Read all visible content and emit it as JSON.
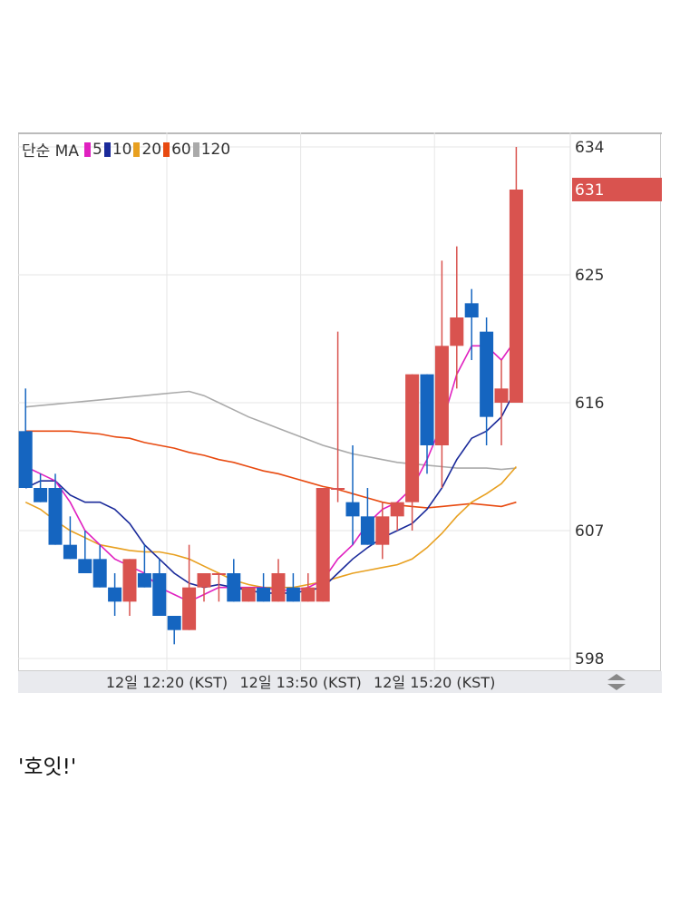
{
  "legend": {
    "prefix": "단순 MA",
    "items": [
      {
        "label": "5",
        "color": "#e020c0"
      },
      {
        "label": "10",
        "color": "#1a2a9a"
      },
      {
        "label": "20",
        "color": "#e8a020"
      },
      {
        "label": "60",
        "color": "#e84a10"
      },
      {
        "label": "120",
        "color": "#aaaaaa"
      }
    ]
  },
  "caption": "'호잇!'",
  "colors": {
    "up": "#d9534f",
    "down": "#1565c0",
    "last_price_bg": "#d9534f"
  },
  "chart_data": {
    "type": "candlestick",
    "ylim": [
      598,
      634
    ],
    "y_ticks": [
      634,
      625,
      616,
      607,
      598
    ],
    "last_price": 631,
    "x_tick_labels": [
      "12일 12:20 (KST)",
      "12일 13:50 (KST)",
      "12일 15:20 (KST)"
    ],
    "x_tick_index": [
      9.5,
      18.5,
      27.5
    ],
    "candles": [
      {
        "o": 614,
        "h": 617,
        "l": 610,
        "c": 610
      },
      {
        "o": 610,
        "h": 611,
        "l": 609,
        "c": 609
      },
      {
        "o": 610,
        "h": 611,
        "l": 606,
        "c": 606
      },
      {
        "o": 606,
        "h": 608,
        "l": 605,
        "c": 605
      },
      {
        "o": 605,
        "h": 607,
        "l": 604,
        "c": 604
      },
      {
        "o": 605,
        "h": 606,
        "l": 603,
        "c": 603
      },
      {
        "o": 603,
        "h": 604,
        "l": 601,
        "c": 602
      },
      {
        "o": 602,
        "h": 605,
        "l": 601,
        "c": 605
      },
      {
        "o": 604,
        "h": 606,
        "l": 603,
        "c": 603
      },
      {
        "o": 604,
        "h": 605,
        "l": 601,
        "c": 601
      },
      {
        "o": 601,
        "h": 601,
        "l": 599,
        "c": 600
      },
      {
        "o": 600,
        "h": 606,
        "l": 600,
        "c": 603
      },
      {
        "o": 603,
        "h": 604,
        "l": 602,
        "c": 604
      },
      {
        "o": 604,
        "h": 604,
        "l": 602,
        "c": 604
      },
      {
        "o": 604,
        "h": 605,
        "l": 602,
        "c": 602
      },
      {
        "o": 602,
        "h": 603,
        "l": 602,
        "c": 603
      },
      {
        "o": 603,
        "h": 604,
        "l": 602,
        "c": 602
      },
      {
        "o": 602,
        "h": 605,
        "l": 602,
        "c": 604
      },
      {
        "o": 603,
        "h": 604,
        "l": 602,
        "c": 602
      },
      {
        "o": 602,
        "h": 604,
        "l": 602,
        "c": 603
      },
      {
        "o": 602,
        "h": 610,
        "l": 602,
        "c": 610
      },
      {
        "o": 610,
        "h": 621,
        "l": 609,
        "c": 610
      },
      {
        "o": 609,
        "h": 613,
        "l": 606,
        "c": 608
      },
      {
        "o": 608,
        "h": 610,
        "l": 606,
        "c": 606
      },
      {
        "o": 606,
        "h": 609,
        "l": 605,
        "c": 608
      },
      {
        "o": 608,
        "h": 609,
        "l": 607,
        "c": 609
      },
      {
        "o": 609,
        "h": 618,
        "l": 607,
        "c": 618
      },
      {
        "o": 618,
        "h": 618,
        "l": 611,
        "c": 613
      },
      {
        "o": 613,
        "h": 626,
        "l": 610,
        "c": 620
      },
      {
        "o": 620,
        "h": 627,
        "l": 617,
        "c": 622
      },
      {
        "o": 623,
        "h": 624,
        "l": 619,
        "c": 622
      },
      {
        "o": 621,
        "h": 622,
        "l": 613,
        "c": 615
      },
      {
        "o": 616,
        "h": 619,
        "l": 613,
        "c": 617
      },
      {
        "o": 616,
        "h": 634,
        "l": 616,
        "c": 631
      }
    ],
    "ma": [
      {
        "name": "5",
        "values": [
          611.5,
          611,
          610.5,
          609,
          607,
          606,
          605,
          604.5,
          604,
          603,
          602.5,
          602,
          602.5,
          603,
          603,
          603,
          603,
          602.8,
          602.8,
          603,
          603.5,
          605,
          606,
          607.5,
          608.5,
          609,
          610,
          612,
          614.5,
          618,
          620,
          620,
          619,
          620.5
        ]
      },
      {
        "name": "10",
        "values": [
          610,
          610.5,
          610.5,
          609.5,
          609,
          609,
          608.5,
          607.5,
          606,
          605,
          604,
          603.3,
          603,
          603.2,
          603,
          602.8,
          602.6,
          602.6,
          602.6,
          602.8,
          603,
          604,
          605,
          605.8,
          606.5,
          607,
          607.5,
          608.5,
          610,
          612,
          613.5,
          614,
          615,
          617
        ]
      },
      {
        "name": "20",
        "values": [
          609,
          608.5,
          607.7,
          607,
          606.5,
          606,
          605.8,
          605.6,
          605.5,
          605.5,
          605.3,
          605,
          604.5,
          604,
          603.5,
          603.2,
          603,
          603,
          603,
          603.2,
          603.4,
          603.7,
          604,
          604.2,
          604.4,
          604.6,
          605,
          605.8,
          606.8,
          608,
          609,
          609.6,
          610.3,
          611.5
        ]
      },
      {
        "name": "60",
        "values": [
          614,
          614,
          614,
          614,
          613.9,
          613.8,
          613.6,
          613.5,
          613.2,
          613,
          612.8,
          612.5,
          612.3,
          612,
          611.8,
          611.5,
          611.2,
          611,
          610.7,
          610.4,
          610.1,
          609.9,
          609.6,
          609.3,
          609,
          608.8,
          608.7,
          608.6,
          608.7,
          608.8,
          608.9,
          608.8,
          608.7,
          609
        ]
      },
      {
        "name": "120",
        "values": [
          615.7,
          615.8,
          615.9,
          616,
          616.1,
          616.2,
          616.3,
          616.4,
          616.5,
          616.6,
          616.7,
          616.8,
          616.5,
          616,
          615.5,
          615,
          614.6,
          614.2,
          613.8,
          613.4,
          613,
          612.7,
          612.4,
          612.2,
          612,
          611.8,
          611.7,
          611.6,
          611.5,
          611.4,
          611.4,
          611.4,
          611.3,
          611.4
        ]
      }
    ]
  }
}
